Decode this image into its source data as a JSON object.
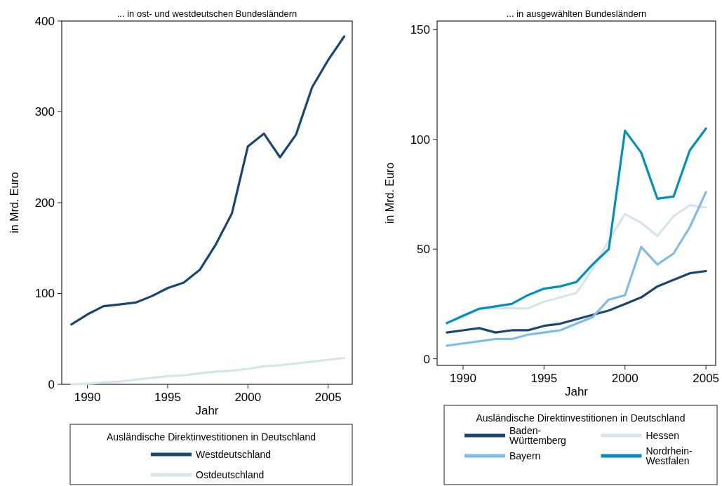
{
  "chart_data": [
    {
      "type": "line",
      "title": "... in ost- und westdeutschen Bundesländern",
      "xlabel": "Jahr",
      "ylabel": "in Mrd. Euro",
      "legend_title": "Ausländische Direktinvestitionen in Deutschland",
      "legend": "bottom",
      "grid": false,
      "marker": "none",
      "line_style": "solid",
      "x": [
        1989,
        1990,
        1991,
        1992,
        1993,
        1994,
        1995,
        1996,
        1997,
        1998,
        1999,
        2000,
        2001,
        2002,
        2003,
        2004,
        2005,
        2006
      ],
      "xlim": [
        1988.4,
        2006.5
      ],
      "xticks": [
        1990,
        1995,
        2000,
        2005
      ],
      "ylim": [
        0,
        400
      ],
      "yticks": [
        0,
        100,
        200,
        300,
        400
      ],
      "series": [
        {
          "name": "Westdeutschland",
          "color": "#1a476f",
          "values": [
            66,
            77,
            86,
            88,
            90,
            97,
            106,
            112,
            126,
            154,
            188,
            262,
            276,
            250,
            275,
            327,
            357,
            383
          ]
        },
        {
          "name": "Ostdeutschland",
          "color": "#d6e4ec",
          "values": [
            0,
            0.5,
            2,
            3,
            5,
            7,
            9,
            10,
            12,
            14,
            15,
            17,
            20,
            21,
            23,
            25,
            27,
            29
          ]
        }
      ]
    },
    {
      "type": "line",
      "title": "... in ausgewählten Bundesländern",
      "xlabel": "Jahr",
      "ylabel": "in Mrd. Euro",
      "legend_title": "Ausländische Direktinvestitionen in Deutschland",
      "legend": "bottom",
      "grid": false,
      "marker": "none",
      "line_style": "solid",
      "x": [
        1989,
        1990,
        1991,
        1992,
        1993,
        1994,
        1995,
        1996,
        1997,
        1998,
        1999,
        2000,
        2001,
        2002,
        2003,
        2004,
        2005
      ],
      "xlim": [
        1988.4,
        2005.6
      ],
      "xticks": [
        1990,
        1995,
        2000,
        2005
      ],
      "ylim": [
        -3,
        154
      ],
      "yticks": [
        0,
        50,
        100,
        150
      ],
      "series": [
        {
          "name": "Baden-Württemberg",
          "color": "#1a476f",
          "values": [
            12,
            13,
            14,
            12,
            13,
            13,
            15,
            16,
            18,
            20,
            22,
            25,
            28,
            33,
            36,
            39,
            40
          ]
        },
        {
          "name": "Hessen",
          "color": "#d6e4ec",
          "values": [
            16,
            19,
            23,
            23,
            23,
            23,
            26,
            28,
            30,
            41,
            54,
            66,
            62,
            56,
            65,
            70,
            69
          ]
        },
        {
          "name": "Bayern",
          "color": "#7fbde8",
          "values": [
            6,
            7,
            8,
            9,
            9,
            11,
            12,
            13,
            16,
            19,
            27,
            29,
            51,
            43,
            48,
            60,
            76
          ]
        },
        {
          "name": "Nordrhein-Westfalen",
          "color": "#0090c0",
          "values": [
            16.3,
            19.6,
            22.8,
            23.9,
            25,
            29,
            32,
            33,
            35,
            43,
            50,
            104,
            94,
            73,
            74,
            95,
            105
          ]
        }
      ]
    }
  ]
}
